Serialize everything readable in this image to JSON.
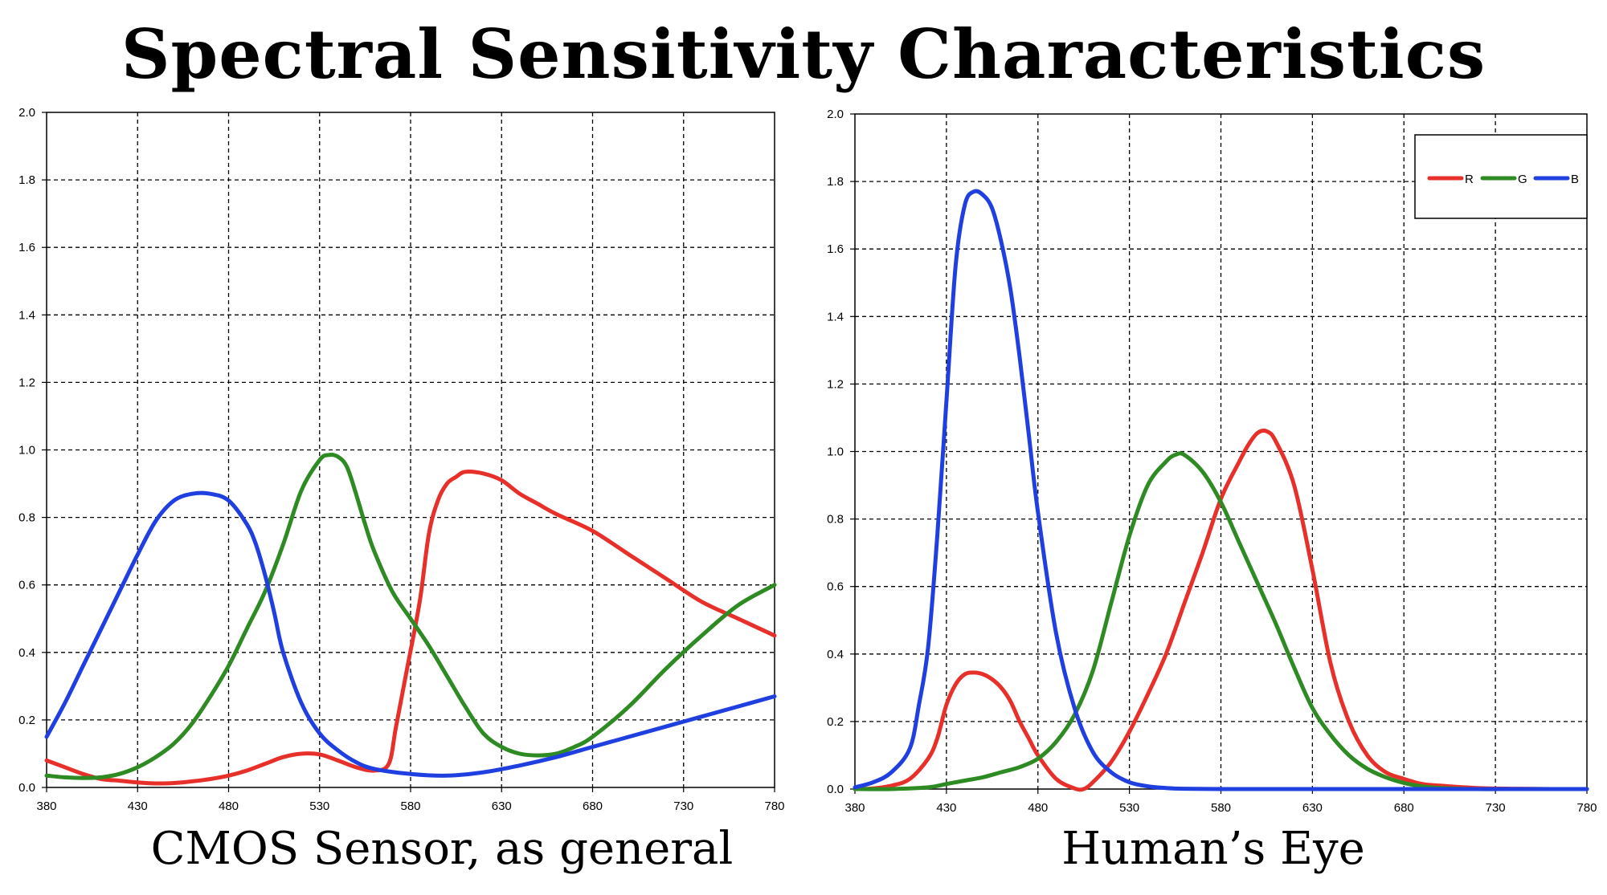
{
  "title": "Spectral Sensitivity Characteristics",
  "colors": {
    "R": "#e8302a",
    "G": "#2e8b23",
    "B": "#1f3fe0"
  },
  "chart_data": [
    {
      "type": "line",
      "caption": "CMOS Sensor, as general",
      "xlabel": "",
      "ylabel": "",
      "xlim": [
        380,
        780
      ],
      "ylim": [
        0,
        2.0
      ],
      "xticks": [
        "380",
        "430",
        "480",
        "530",
        "580",
        "630",
        "680",
        "730",
        "780"
      ],
      "yticks": [
        "0.0",
        "0.2",
        "0.4",
        "0.6",
        "0.8",
        "1.0",
        "1.2",
        "1.4",
        "1.6",
        "1.8",
        "2.0"
      ],
      "grid": true,
      "legend": null,
      "series": [
        {
          "name": "R",
          "x": [
            380,
            390,
            400,
            410,
            420,
            430,
            440,
            450,
            460,
            470,
            480,
            490,
            500,
            510,
            520,
            530,
            540,
            550,
            560,
            568,
            572,
            578,
            585,
            590,
            595,
            600,
            605,
            610,
            620,
            630,
            640,
            650,
            660,
            680,
            700,
            720,
            740,
            760,
            780
          ],
          "y": [
            0.08,
            0.06,
            0.04,
            0.025,
            0.02,
            0.015,
            0.012,
            0.013,
            0.018,
            0.025,
            0.035,
            0.05,
            0.07,
            0.09,
            0.1,
            0.098,
            0.08,
            0.06,
            0.05,
            0.07,
            0.18,
            0.35,
            0.55,
            0.75,
            0.85,
            0.9,
            0.92,
            0.935,
            0.93,
            0.91,
            0.87,
            0.84,
            0.81,
            0.76,
            0.69,
            0.62,
            0.55,
            0.5,
            0.45
          ]
        },
        {
          "name": "G",
          "x": [
            380,
            390,
            400,
            410,
            420,
            430,
            440,
            450,
            460,
            470,
            480,
            490,
            500,
            510,
            520,
            530,
            535,
            540,
            545,
            550,
            555,
            560,
            570,
            580,
            590,
            600,
            610,
            620,
            630,
            640,
            650,
            660,
            670,
            680,
            700,
            720,
            740,
            760,
            780
          ],
          "y": [
            0.035,
            0.03,
            0.028,
            0.03,
            0.04,
            0.06,
            0.09,
            0.13,
            0.19,
            0.27,
            0.36,
            0.47,
            0.58,
            0.72,
            0.88,
            0.97,
            0.985,
            0.98,
            0.95,
            0.87,
            0.78,
            0.7,
            0.58,
            0.5,
            0.42,
            0.33,
            0.24,
            0.16,
            0.12,
            0.1,
            0.095,
            0.1,
            0.12,
            0.15,
            0.24,
            0.35,
            0.45,
            0.54,
            0.6
          ]
        },
        {
          "name": "B",
          "x": [
            380,
            390,
            400,
            410,
            420,
            430,
            440,
            450,
            460,
            470,
            480,
            490,
            495,
            500,
            505,
            510,
            520,
            530,
            540,
            550,
            560,
            580,
            600,
            620,
            640,
            660,
            680,
            700,
            720,
            740,
            760,
            780
          ],
          "y": [
            0.15,
            0.25,
            0.36,
            0.47,
            0.58,
            0.69,
            0.79,
            0.85,
            0.87,
            0.87,
            0.85,
            0.78,
            0.72,
            0.63,
            0.52,
            0.4,
            0.25,
            0.16,
            0.11,
            0.075,
            0.055,
            0.04,
            0.035,
            0.045,
            0.065,
            0.09,
            0.12,
            0.15,
            0.18,
            0.21,
            0.24,
            0.27
          ]
        }
      ]
    },
    {
      "type": "line",
      "caption": "Human’s Eye",
      "xlabel": "",
      "ylabel": "",
      "xlim": [
        380,
        780
      ],
      "ylim": [
        0,
        2.0
      ],
      "xticks": [
        "380",
        "430",
        "480",
        "530",
        "580",
        "630",
        "680",
        "730",
        "780"
      ],
      "yticks": [
        "0.0",
        "0.2",
        "0.4",
        "0.6",
        "0.8",
        "1.0",
        "1.2",
        "1.4",
        "1.6",
        "1.8",
        "2.0"
      ],
      "grid": true,
      "legend": {
        "position": "top-right",
        "entries": [
          "R",
          "G",
          "B"
        ]
      },
      "series": [
        {
          "name": "R",
          "x": [
            380,
            390,
            400,
            410,
            420,
            425,
            430,
            435,
            440,
            445,
            450,
            455,
            460,
            465,
            470,
            475,
            480,
            490,
            500,
            505,
            510,
            520,
            530,
            540,
            550,
            560,
            570,
            580,
            590,
            595,
            600,
            605,
            610,
            620,
            630,
            640,
            650,
            660,
            670,
            680,
            690,
            700,
            720,
            740,
            760,
            780
          ],
          "y": [
            0.0,
            0.002,
            0.01,
            0.03,
            0.09,
            0.15,
            0.25,
            0.31,
            0.34,
            0.345,
            0.34,
            0.325,
            0.3,
            0.26,
            0.2,
            0.15,
            0.1,
            0.03,
            0.002,
            0.0,
            0.02,
            0.08,
            0.17,
            0.28,
            0.4,
            0.55,
            0.7,
            0.86,
            0.97,
            1.02,
            1.055,
            1.06,
            1.03,
            0.9,
            0.65,
            0.37,
            0.2,
            0.1,
            0.05,
            0.03,
            0.015,
            0.01,
            0.003,
            0.001,
            0.0,
            0.0
          ]
        },
        {
          "name": "G",
          "x": [
            380,
            400,
            420,
            430,
            440,
            450,
            460,
            470,
            480,
            490,
            500,
            510,
            520,
            530,
            540,
            550,
            555,
            560,
            570,
            580,
            590,
            600,
            610,
            620,
            630,
            640,
            650,
            660,
            670,
            680,
            690,
            700,
            720,
            740,
            760,
            780
          ],
          "y": [
            0.0,
            0.0,
            0.005,
            0.015,
            0.025,
            0.035,
            0.05,
            0.065,
            0.09,
            0.14,
            0.22,
            0.35,
            0.55,
            0.75,
            0.9,
            0.97,
            0.99,
            0.99,
            0.94,
            0.85,
            0.73,
            0.61,
            0.49,
            0.36,
            0.24,
            0.16,
            0.1,
            0.06,
            0.035,
            0.018,
            0.008,
            0.003,
            0.0,
            0.0,
            0.0,
            0.0
          ]
        },
        {
          "name": "B",
          "x": [
            380,
            390,
            400,
            410,
            415,
            420,
            425,
            430,
            435,
            440,
            445,
            450,
            455,
            460,
            465,
            470,
            475,
            480,
            490,
            500,
            510,
            520,
            530,
            540,
            550,
            560,
            580,
            600,
            650,
            700,
            780
          ],
          "y": [
            0.005,
            0.02,
            0.05,
            0.12,
            0.25,
            0.42,
            0.75,
            1.15,
            1.55,
            1.73,
            1.77,
            1.76,
            1.72,
            1.62,
            1.48,
            1.28,
            1.05,
            0.82,
            0.46,
            0.24,
            0.11,
            0.05,
            0.02,
            0.008,
            0.003,
            0.001,
            0.0,
            0.0,
            0.0,
            0.0,
            0.0
          ]
        }
      ]
    }
  ]
}
